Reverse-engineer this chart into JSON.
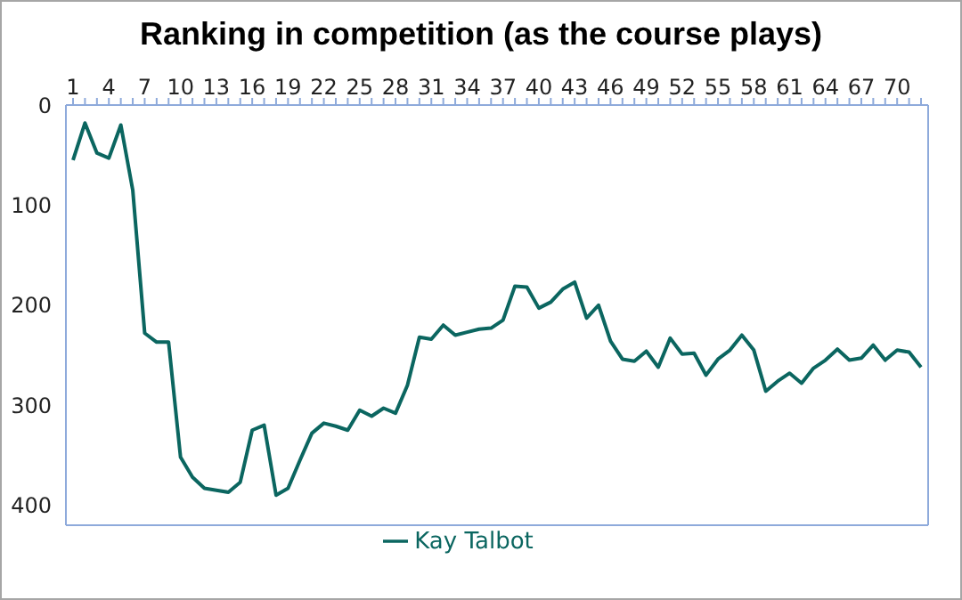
{
  "chart_data": {
    "type": "line",
    "title": "Ranking in competition (as the course plays)",
    "categories": [
      "1",
      null,
      null,
      "4",
      null,
      null,
      "7",
      null,
      null,
      "10",
      null,
      null,
      "13",
      null,
      null,
      "16",
      null,
      null,
      "19",
      null,
      null,
      "22",
      null,
      null,
      "25",
      null,
      null,
      "28",
      null,
      null,
      "31",
      null,
      null,
      "34",
      null,
      null,
      "37",
      null,
      null,
      "40",
      null,
      null,
      "43",
      null,
      null,
      "46",
      null,
      null,
      "49",
      null,
      null,
      "52",
      null,
      null,
      "55",
      null,
      null,
      "58",
      null,
      null,
      "61",
      null,
      null,
      "64",
      null,
      null,
      "67",
      null,
      null,
      "70",
      null,
      null
    ],
    "series": [
      {
        "name": "Kay Talbot",
        "color": "#0b6660",
        "values": [
          55,
          18,
          48,
          53,
          20,
          85,
          228,
          237,
          237,
          352,
          372,
          383,
          385,
          387,
          377,
          325,
          320,
          390,
          383,
          355,
          328,
          318,
          321,
          325,
          305,
          311,
          303,
          308,
          280,
          232,
          234,
          220,
          230,
          227,
          224,
          223,
          215,
          181,
          182,
          203,
          197,
          184,
          177,
          213,
          200,
          236,
          254,
          256,
          246,
          262,
          233,
          249,
          248,
          270,
          254,
          245,
          230,
          245,
          286,
          276,
          268,
          278,
          263,
          255,
          244,
          255,
          253,
          240,
          255,
          245,
          247,
          262
        ]
      }
    ],
    "ylim": [
      420,
      0
    ],
    "yticks": [
      0,
      100,
      200,
      300,
      400
    ],
    "legend": "bottom",
    "marker": "none",
    "line_style": "solid"
  }
}
